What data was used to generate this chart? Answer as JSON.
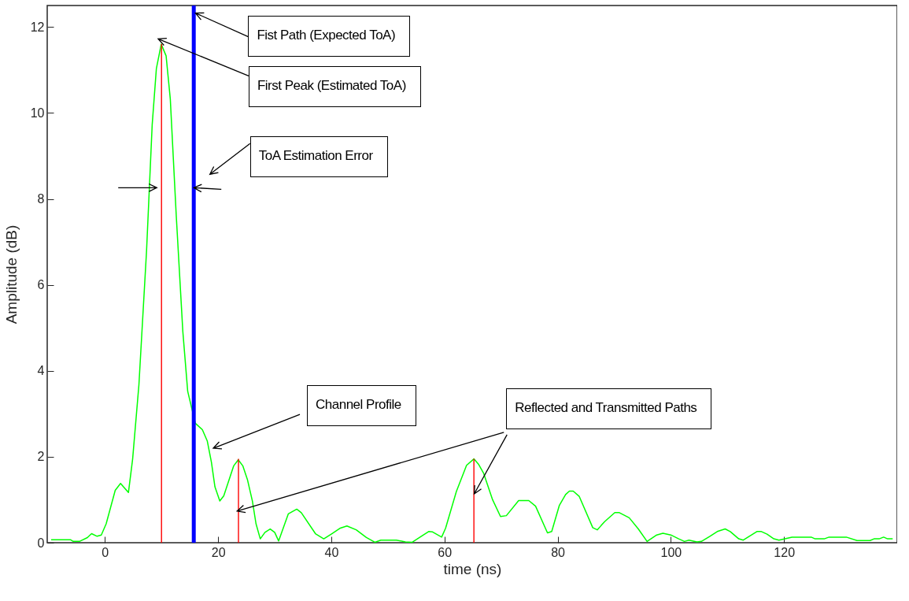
{
  "chart_data": {
    "type": "line",
    "xlabel": "time (ns)",
    "ylabel": "Amplitude (dB)",
    "xlim": [
      -9.5,
      139.3
    ],
    "ylim": [
      0,
      12.5
    ],
    "xticks": [
      0,
      20,
      40,
      60,
      80,
      100,
      120
    ],
    "yticks": [
      0,
      2,
      4,
      6,
      8,
      10,
      12
    ],
    "grid": false,
    "marker": "none",
    "line_style": "solid",
    "series": [
      {
        "color": "#00ff00",
        "x": [
          -9.5,
          -6.1,
          -5.6,
          -4.5,
          -3.1,
          -2.36,
          -1.38,
          -0.64,
          0.22,
          1.82,
          2.76,
          4.16,
          4.9,
          6.01,
          7.36,
          8.35,
          9.09,
          9.95,
          10.81,
          11.55,
          12.6,
          13.77,
          14.63,
          15.98,
          17.22,
          18.08,
          18.82,
          19.44,
          20.3,
          21.0,
          22.76,
          23.56,
          24.36,
          25.2,
          26.06,
          26.7,
          27.45,
          28.28,
          29.2,
          30.0,
          30.7,
          32.4,
          33.9,
          34.7,
          37.2,
          38.67,
          40.1,
          41.6,
          42.76,
          44.4,
          46.2,
          47.7,
          48.74,
          51.5,
          53.1,
          54.3,
          55.9,
          57.2,
          57.9,
          59.5,
          60.2,
          62.1,
          63.9,
          65.2,
          66.0,
          66.9,
          68.5,
          69.9,
          70.94,
          73.1,
          74.9,
          76.1,
          78.2,
          78.95,
          80.3,
          81.4,
          82.07,
          82.75,
          83.8,
          86.2,
          87.0,
          88.3,
          90.1,
          90.9,
          92.65,
          94.25,
          95.8,
          97.5,
          98.6,
          100.0,
          101.4,
          102.4,
          103.2,
          104.6,
          105.4,
          106.9,
          108.2,
          109.6,
          110.5,
          112.0,
          112.8,
          115.2,
          116.0,
          117.0,
          118.2,
          119.1,
          121.4,
          124.8,
          125.5,
          127.1,
          127.95,
          131.0,
          132.9,
          135.2,
          135.9,
          136.8,
          137.6,
          138.3,
          139.2
        ],
        "values": [
          0.07,
          0.07,
          0.03,
          0.03,
          0.12,
          0.21,
          0.15,
          0.18,
          0.44,
          1.22,
          1.38,
          1.17,
          1.95,
          3.68,
          6.8,
          9.72,
          11.03,
          11.6,
          11.33,
          10.33,
          7.62,
          4.91,
          3.52,
          2.78,
          2.63,
          2.37,
          1.87,
          1.3,
          0.97,
          1.09,
          1.79,
          1.93,
          1.79,
          1.46,
          0.97,
          0.44,
          0.09,
          0.24,
          0.32,
          0.24,
          0.04,
          0.67,
          0.78,
          0.7,
          0.21,
          0.09,
          0.21,
          0.34,
          0.39,
          0.3,
          0.12,
          0.01,
          0.06,
          0.06,
          0.02,
          0.01,
          0.15,
          0.26,
          0.25,
          0.13,
          0.34,
          1.19,
          1.8,
          1.95,
          1.83,
          1.62,
          1.0,
          0.61,
          0.63,
          0.98,
          0.98,
          0.85,
          0.23,
          0.26,
          0.87,
          1.12,
          1.2,
          1.2,
          1.08,
          0.35,
          0.3,
          0.49,
          0.7,
          0.7,
          0.58,
          0.32,
          0.03,
          0.18,
          0.22,
          0.18,
          0.09,
          0.03,
          0.06,
          0.02,
          0.03,
          0.15,
          0.26,
          0.32,
          0.26,
          0.09,
          0.06,
          0.26,
          0.26,
          0.2,
          0.09,
          0.06,
          0.13,
          0.13,
          0.09,
          0.09,
          0.13,
          0.13,
          0.05,
          0.05,
          0.09,
          0.09,
          0.13,
          0.09,
          0.09
        ]
      },
      {
        "type": "bar",
        "color": "#ff0000",
        "x": [
          10,
          23.6,
          65.2
        ],
        "values": [
          11.6,
          1.95,
          1.95
        ]
      }
    ],
    "ref_lines": [
      {
        "axis": "x",
        "value": 15.7,
        "color": "#0000ff"
      }
    ],
    "annotations": [
      {
        "text": "Fist Path (Expected ToA)",
        "x": 16.7,
        "y": 12.25
      },
      {
        "text": "First Peak (Estimated ToA)",
        "x": 10.1,
        "y": 11.65
      },
      "ToA Estimation Error",
      "Channel Profile",
      "Reflected and Transmitted Paths"
    ]
  }
}
